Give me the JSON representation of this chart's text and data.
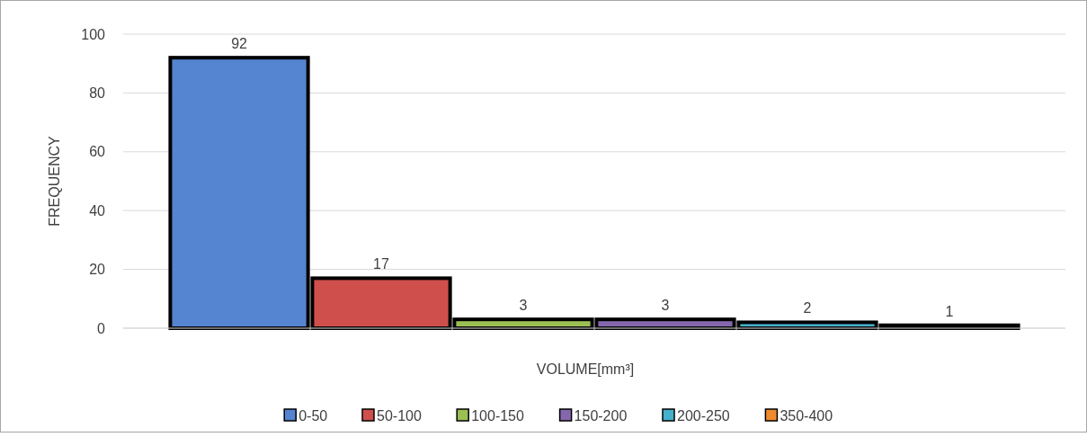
{
  "chart_data": {
    "type": "bar",
    "xlabel": "VOLUME[mm³]",
    "ylabel": "FREQUENCY",
    "categories": [
      null
    ],
    "series": [
      {
        "name": "0-50",
        "color": "#5584d0",
        "values": [
          92
        ]
      },
      {
        "name": "50-100",
        "color": "#cf4f4c",
        "values": [
          17
        ]
      },
      {
        "name": "100-150",
        "color": "#9bbf52",
        "values": [
          3
        ]
      },
      {
        "name": "150-200",
        "color": "#8567ad",
        "values": [
          3
        ]
      },
      {
        "name": "200-250",
        "color": "#45b1cc",
        "values": [
          2
        ]
      },
      {
        "name": "350-400",
        "color": "#f08a2e",
        "values": [
          1
        ]
      }
    ],
    "ylim": [
      0,
      100
    ],
    "yticks": [
      0,
      20,
      40,
      60,
      80,
      100
    ],
    "grid": "y",
    "legend": "bottom",
    "data_labels": true
  }
}
